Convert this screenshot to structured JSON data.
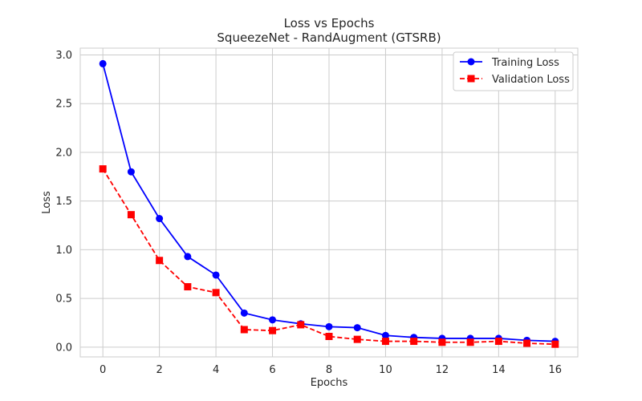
{
  "chart_data": {
    "type": "line",
    "title": "Loss vs Epochs",
    "subtitle": "SqueezeNet - RandAugment (GTSRB)",
    "xlabel": "Epochs",
    "ylabel": "Loss",
    "xlim": [
      -0.8,
      16.8
    ],
    "ylim": [
      -0.1,
      3.07
    ],
    "xticks": [
      0,
      2,
      4,
      6,
      8,
      10,
      12,
      14,
      16
    ],
    "yticks": [
      0.0,
      0.5,
      1.0,
      1.5,
      2.0,
      2.5,
      3.0
    ],
    "grid": true,
    "legend_position": "top-right",
    "x": [
      0,
      1,
      2,
      3,
      4,
      5,
      6,
      7,
      8,
      9,
      10,
      11,
      12,
      13,
      14,
      15,
      16
    ],
    "series": [
      {
        "name": "Training Loss",
        "color": "#0000ff",
        "marker": "circle",
        "linestyle": "solid",
        "values": [
          2.91,
          1.8,
          1.32,
          0.93,
          0.74,
          0.35,
          0.28,
          0.24,
          0.21,
          0.2,
          0.12,
          0.1,
          0.09,
          0.09,
          0.09,
          0.07,
          0.06
        ]
      },
      {
        "name": "Validation Loss",
        "color": "#ff0000",
        "marker": "square",
        "linestyle": "dashed",
        "values": [
          1.83,
          1.36,
          0.89,
          0.62,
          0.56,
          0.18,
          0.17,
          0.23,
          0.11,
          0.08,
          0.06,
          0.06,
          0.05,
          0.05,
          0.06,
          0.04,
          0.03
        ]
      }
    ]
  }
}
